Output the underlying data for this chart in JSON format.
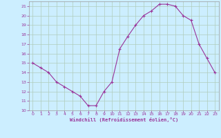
{
  "x": [
    0,
    1,
    2,
    3,
    4,
    5,
    6,
    7,
    8,
    9,
    10,
    11,
    12,
    13,
    14,
    15,
    16,
    17,
    18,
    19,
    20,
    21,
    22,
    23
  ],
  "y": [
    15.0,
    14.5,
    14.0,
    13.0,
    12.5,
    12.0,
    11.5,
    10.5,
    10.5,
    12.0,
    13.0,
    16.5,
    17.8,
    19.0,
    20.0,
    20.5,
    21.2,
    21.2,
    21.0,
    20.0,
    19.5,
    17.0,
    15.5,
    14.0
  ],
  "xlabel": "Windchill (Refroidissement éolien,°C)",
  "line_color": "#993399",
  "marker": "+",
  "bg_color": "#cceeff",
  "grid_color": "#b0ccbb",
  "tick_label_color": "#993399",
  "xlabel_color": "#993399",
  "ylim": [
    10,
    21.5
  ],
  "xlim": [
    -0.5,
    23.5
  ],
  "yticks": [
    10,
    11,
    12,
    13,
    14,
    15,
    16,
    17,
    18,
    19,
    20,
    21
  ],
  "xticks": [
    0,
    1,
    2,
    3,
    4,
    5,
    6,
    7,
    8,
    9,
    10,
    11,
    12,
    13,
    14,
    15,
    16,
    17,
    18,
    19,
    20,
    21,
    22,
    23
  ]
}
